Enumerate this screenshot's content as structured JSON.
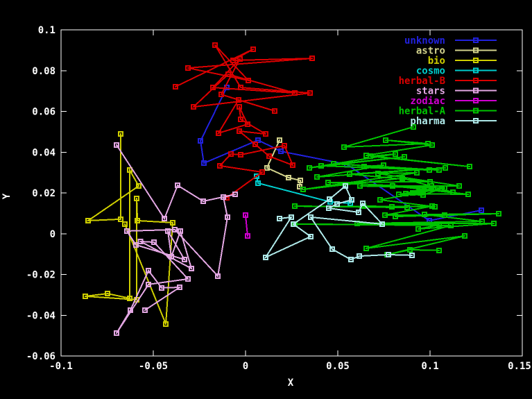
{
  "window": {
    "background": "#000000"
  },
  "axes": {
    "xlabel": "X",
    "ylabel": "Y",
    "xlim": [
      -0.1,
      0.15
    ],
    "ylim": [
      -0.06,
      0.1
    ],
    "xticks": [
      -0.1,
      -0.05,
      0,
      0.05,
      0.1,
      0.15
    ],
    "xtick_labels": [
      "-0.1",
      "-0.05",
      "0",
      "0.05",
      "0.1",
      "0.15"
    ],
    "yticks": [
      0.1,
      0.08,
      0.06,
      0.04,
      0.02,
      0,
      -0.02,
      -0.04,
      -0.06
    ],
    "ytick_labels": [
      "0.1",
      "0.08",
      "0.06",
      "0.04",
      "0.02",
      "0",
      "-0.02",
      "-0.04",
      "-0.06"
    ],
    "frame_color": "#ffffff",
    "text_color": "#ffffff"
  },
  "chart_data": {
    "type": "line",
    "style": "linespoints",
    "marker": "open-square-with-center-dot",
    "grid": false,
    "legend_position": "top-right-inside",
    "series": [
      {
        "name": "unknown",
        "color": "#2121de",
        "points": [
          [
            -0.0102,
            0.0717
          ],
          [
            -0.0244,
            0.0455
          ],
          [
            -0.0226,
            0.0346
          ],
          [
            0.0068,
            0.0459
          ],
          [
            0.0192,
            0.0404
          ],
          [
            0.0549,
            0.034
          ],
          [
            0.0996,
            0.0064
          ],
          [
            0.1278,
            0.0115
          ]
        ]
      },
      {
        "name": "astro",
        "color": "#d2d28c",
        "points": [
          [
            0.0184,
            0.0459
          ],
          [
            0.0116,
            0.0323
          ],
          [
            0.0233,
            0.0275
          ],
          [
            0.0297,
            0.0261
          ],
          [
            0.0293,
            0.0231
          ]
        ]
      },
      {
        "name": "bio",
        "color": "#cfcf00",
        "points": [
          [
            -0.0677,
            0.0489
          ],
          [
            -0.0677,
            0.0071
          ],
          [
            -0.0853,
            0.0064
          ],
          [
            -0.0579,
            0.0234
          ],
          [
            -0.0628,
            0.0312
          ],
          [
            -0.0628,
            -0.0317
          ],
          [
            -0.0748,
            -0.0294
          ],
          [
            -0.0868,
            -0.0307
          ],
          [
            -0.059,
            -0.0324
          ],
          [
            -0.059,
            0.0173
          ],
          [
            -0.0586,
            0.0064
          ],
          [
            -0.0395,
            0.0054
          ],
          [
            -0.0432,
            -0.0443
          ],
          [
            -0.0654,
            0.0047
          ]
        ]
      },
      {
        "name": "cosmo",
        "color": "#00cdcd",
        "points": [
          [
            0.006,
            0.0282
          ],
          [
            0.0068,
            0.0248
          ],
          [
            0.0459,
            0.0156
          ],
          [
            0.0568,
            0.0149
          ]
        ]
      },
      {
        "name": "herbal-B",
        "color": "#da0000",
        "points": [
          [
            -0.038,
            0.0721
          ],
          [
            0.0041,
            0.0905
          ],
          [
            -0.0068,
            0.085
          ],
          [
            0.0361,
            0.086
          ],
          [
            -0.0312,
            0.0813
          ],
          [
            0.0015,
            0.0752
          ],
          [
            -0.0165,
            0.0925
          ],
          [
            -0.0026,
            0.0717
          ],
          [
            0.035,
            0.069
          ],
          [
            -0.0282,
            0.0622
          ],
          [
            -0.0094,
            0.0782
          ],
          [
            0.0267,
            0.069
          ],
          [
            -0.0177,
            0.0717
          ],
          [
            -0.0031,
            0.0857
          ],
          [
            -0.0132,
            0.0683
          ],
          [
            0.0158,
            0.0602
          ],
          [
            -0.0038,
            0.0656
          ],
          [
            -0.0147,
            0.0493
          ],
          [
            0.0011,
            0.0537
          ],
          [
            -0.0034,
            0.0622
          ],
          [
            -0.0026,
            0.0561
          ],
          [
            0.0109,
            0.0489
          ],
          [
            -0.0034,
            0.0503
          ],
          [
            0.0053,
            0.0438
          ],
          [
            0.0128,
            0.038
          ],
          [
            0.0256,
            0.0336
          ],
          [
            0.0211,
            0.0432
          ],
          [
            -0.0026,
            0.0387
          ],
          [
            -0.0079,
            0.0391
          ],
          [
            -0.0139,
            0.0333
          ],
          [
            0.009,
            0.0302
          ],
          [
            -0.0102,
            0.0176
          ]
        ]
      },
      {
        "name": "stars",
        "color": "#e3a7e3",
        "points": [
          [
            -0.0699,
            0.0435
          ],
          [
            -0.044,
            0.0074
          ],
          [
            -0.0368,
            0.0237
          ],
          [
            -0.0229,
            0.0159
          ],
          [
            -0.0056,
            0.0193
          ],
          [
            -0.012,
            0.0179
          ],
          [
            -0.0098,
            0.0081
          ],
          [
            -0.015,
            -0.0208
          ],
          [
            -0.0383,
            0.002
          ],
          [
            -0.0643,
            0.0013
          ],
          [
            -0.0594,
            -0.0055
          ],
          [
            -0.0331,
            -0.0127
          ],
          [
            -0.0421,
            0.0013
          ],
          [
            -0.0402,
            -0.0113
          ],
          [
            -0.0353,
            0.0013
          ],
          [
            -0.0293,
            -0.0171
          ],
          [
            -0.057,
            -0.0038
          ],
          [
            -0.0496,
            -0.0042
          ],
          [
            -0.0312,
            -0.0222
          ],
          [
            -0.0526,
            -0.0249
          ],
          [
            -0.0699,
            -0.0488
          ],
          [
            -0.0624,
            -0.0375
          ],
          [
            -0.0526,
            -0.0181
          ],
          [
            -0.0455,
            -0.0266
          ],
          [
            -0.0357,
            -0.0263
          ],
          [
            -0.0545,
            -0.0375
          ]
        ]
      },
      {
        "name": "zodiac",
        "color": "#cf00cf",
        "points": [
          [
            0.0,
            0.0091
          ],
          [
            0.0011,
            -0.0011
          ]
        ]
      },
      {
        "name": "herbal-A",
        "color": "#00c400",
        "points": [
          [
            0.091,
            0.0524
          ],
          [
            0.0534,
            0.0425
          ],
          [
            0.0989,
            0.0442
          ],
          [
            0.0759,
            0.0459
          ],
          [
            0.1011,
            0.0435
          ],
          [
            0.0654,
            0.0384
          ],
          [
            0.1214,
            0.0329
          ],
          [
            0.0677,
            0.038
          ],
          [
            0.0812,
            0.0391
          ],
          [
            0.0346,
            0.0323
          ],
          [
            0.0861,
            0.0377
          ],
          [
            0.041,
            0.0333
          ],
          [
            0.0997,
            0.0312
          ],
          [
            0.0477,
            0.0343
          ],
          [
            0.1049,
            0.0312
          ],
          [
            0.0643,
            0.0329
          ],
          [
            0.0748,
            0.0336
          ],
          [
            0.0387,
            0.0278
          ],
          [
            0.1083,
            0.0323
          ],
          [
            0.0564,
            0.0292
          ],
          [
            0.1,
            0.0255
          ],
          [
            0.0447,
            0.0251
          ],
          [
            0.1079,
            0.0224
          ],
          [
            0.062,
            0.0234
          ],
          [
            0.1158,
            0.0234
          ],
          [
            0.0718,
            0.0295
          ],
          [
            0.0929,
            0.0299
          ],
          [
            0.0312,
            0.0217
          ],
          [
            0.085,
            0.0272
          ],
          [
            0.1124,
            0.0203
          ],
          [
            0.0797,
            0.0234
          ],
          [
            0.1207,
            0.0193
          ],
          [
            0.0868,
            0.0197
          ],
          [
            0.1008,
            0.0234
          ],
          [
            0.0906,
            0.02
          ],
          [
            0.1019,
            0.0221
          ],
          [
            0.0831,
            0.0193
          ],
          [
            0.0962,
            0.019
          ],
          [
            0.1064,
            0.0221
          ],
          [
            0.0729,
            0.0166
          ],
          [
            0.1026,
            0.0132
          ],
          [
            0.0639,
            0.0135
          ],
          [
            0.0876,
            0.0128
          ],
          [
            0.0267,
            0.0135
          ],
          [
            0.0793,
            0.0132
          ],
          [
            0.1011,
            0.0135
          ],
          [
            0.0756,
            0.0091
          ],
          [
            0.1079,
            0.0091
          ],
          [
            0.0812,
            0.0084
          ],
          [
            0.1372,
            0.0098
          ],
          [
            0.097,
            0.0094
          ],
          [
            0.1282,
            0.006
          ],
          [
            0.0605,
            0.005
          ],
          [
            0.1346,
            0.005
          ],
          [
            0.0936,
            0.0023
          ],
          [
            0.1049,
            0.0043
          ],
          [
            0.0267,
            0.0047
          ],
          [
            0.1113,
            0.004
          ],
          [
            0.0654,
            -0.0072
          ],
          [
            0.1188,
            -0.0011
          ],
          [
            0.0767,
            -0.0103
          ],
          [
            0.0891,
            -0.0079
          ],
          [
            0.1049,
            -0.0082
          ]
        ]
      },
      {
        "name": "pharma",
        "color": "#aee8e8",
        "points": [
          [
            0.0184,
            0.0074
          ],
          [
            0.0248,
            0.0081
          ],
          [
            0.0109,
            -0.0116
          ],
          [
            0.0353,
            -0.0014
          ],
          [
            0.0259,
            0.0047
          ],
          [
            0.0455,
            0.0169
          ],
          [
            0.0541,
            0.0234
          ],
          [
            0.0575,
            0.0166
          ],
          [
            0.0496,
            0.0146
          ],
          [
            0.0451,
            0.0125
          ],
          [
            0.0613,
            0.0105
          ],
          [
            0.0635,
            0.0149
          ],
          [
            0.0741,
            0.0047
          ],
          [
            0.0353,
            0.0081
          ],
          [
            0.047,
            -0.0076
          ],
          [
            0.0571,
            -0.0127
          ],
          [
            0.0617,
            -0.011
          ],
          [
            0.0774,
            -0.0103
          ],
          [
            0.0902,
            -0.0106
          ]
        ]
      }
    ]
  }
}
